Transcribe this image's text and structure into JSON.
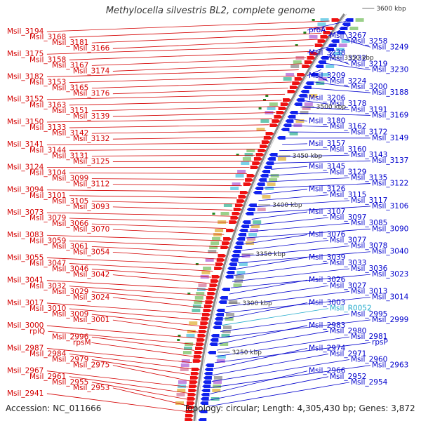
{
  "title": "Methylocella silvestris BL2, complete genome",
  "footer": {
    "accession": "Accession: NC_011666",
    "info": "Topology: circular; Length: 4,305,430 bp; Genes: 3,872"
  },
  "colors": {
    "left_label": "#d40000",
    "right_label": "#0000cc",
    "rna_label": "#22aacc",
    "forward_gene": "#ee1111",
    "reverse_gene": "#1122ee",
    "backbone": "#888888",
    "tick": "#228822"
  },
  "scale_labels": [
    "3600 kbp",
    "3550 kbp",
    "3500 kbp",
    "3450 kbp",
    "3400 kbp",
    "3350 kbp",
    "3300 kbp",
    "3250 kbp"
  ],
  "left_labels": [
    "Msil_3194",
    "Msil_3168",
    "Msil_3181",
    "Msil_3166",
    "Msil_3175",
    "Msil_3158",
    "Msil_3167",
    "Msil_3174",
    "Msil_3182",
    "Msil_3153",
    "Msil_3165",
    "Msil_3176",
    "Msil_3152",
    "Msil_3163",
    "Msil_3151",
    "Msil_3139",
    "Msil_3150",
    "Msil_3133",
    "Msil_3142",
    "Msil_3132",
    "Msil_3141",
    "Msil_3144",
    "Msil_3131",
    "Msil_3125",
    "Msil_3124",
    "Msil_3104",
    "Msil_3099",
    "Msil_3112",
    "Msil_3094",
    "Msil_3101",
    "Msil_3105",
    "Msil_3093",
    "Msil_3073",
    "Msil_3079",
    "Msil_3066",
    "Msil_3070",
    "Msil_3083",
    "Msil_3059",
    "Msil_3061",
    "Msil_3054",
    "Msil_3055",
    "Msil_3047",
    "Msil_3046",
    "Msil_3042",
    "Msil_3041",
    "Msil_3032",
    "Msil_3029",
    "Msil_3024",
    "Msil_3017",
    "Msil_3010",
    "Msil_3009",
    "Msil_3001",
    "Msil_3000",
    "rplQ",
    "Msil_2996",
    "rpsM",
    "Msil_2987",
    "Msil_2984",
    "Msil_2979",
    "Msil_2975",
    "Msil_2967",
    "Msil_2961",
    "Msil_2955",
    "Msil_2953",
    "Msil_2941"
  ],
  "right_labels": [
    "proA",
    "Msil_3267",
    "Msil_3258",
    "Msil_3249",
    "Msil_3238",
    "Msil_3232",
    "Msil_3219",
    "Msil_3230",
    "Msil_3209",
    "Msil_3224",
    "Msil_3200",
    "Msil_3188",
    "Msil_3206",
    "Msil_3178",
    "Msil_3191",
    "Msil_3169",
    "Msil_3180",
    "Msil_3162",
    "Msil_3172",
    "Msil_3149",
    "Msil_3157",
    "Msil_3160",
    "Msil_3143",
    "Msil_3137",
    "Msil_3145",
    "Msil_3129",
    "Msil_3135",
    "Msil_3122",
    "Msil_3126",
    "Msil_3115",
    "Msil_3117",
    "Msil_3106",
    "Msil_3107",
    "Msil_3097",
    "Msil_3085",
    "Msil_3090",
    "Msil_3076",
    "Msil_3077",
    "Msil_3078",
    "Msil_3040",
    "Msil_3039",
    "Msil_3033",
    "Msil_3036",
    "Msil_3023",
    "Msil_3026",
    "Msil_3027",
    "Msil_3013",
    "Msil_3014",
    "Msil_3003",
    "Msil_R0052",
    "Msil_2995",
    "Msil_2999",
    "Msil_2983",
    "Msil_2980",
    "Msil_2981",
    "rpsP",
    "Msil_2974",
    "Msil_2971",
    "Msil_2960",
    "Msil_2963",
    "Msil_2966",
    "Msil_2952",
    "Msil_2954"
  ]
}
